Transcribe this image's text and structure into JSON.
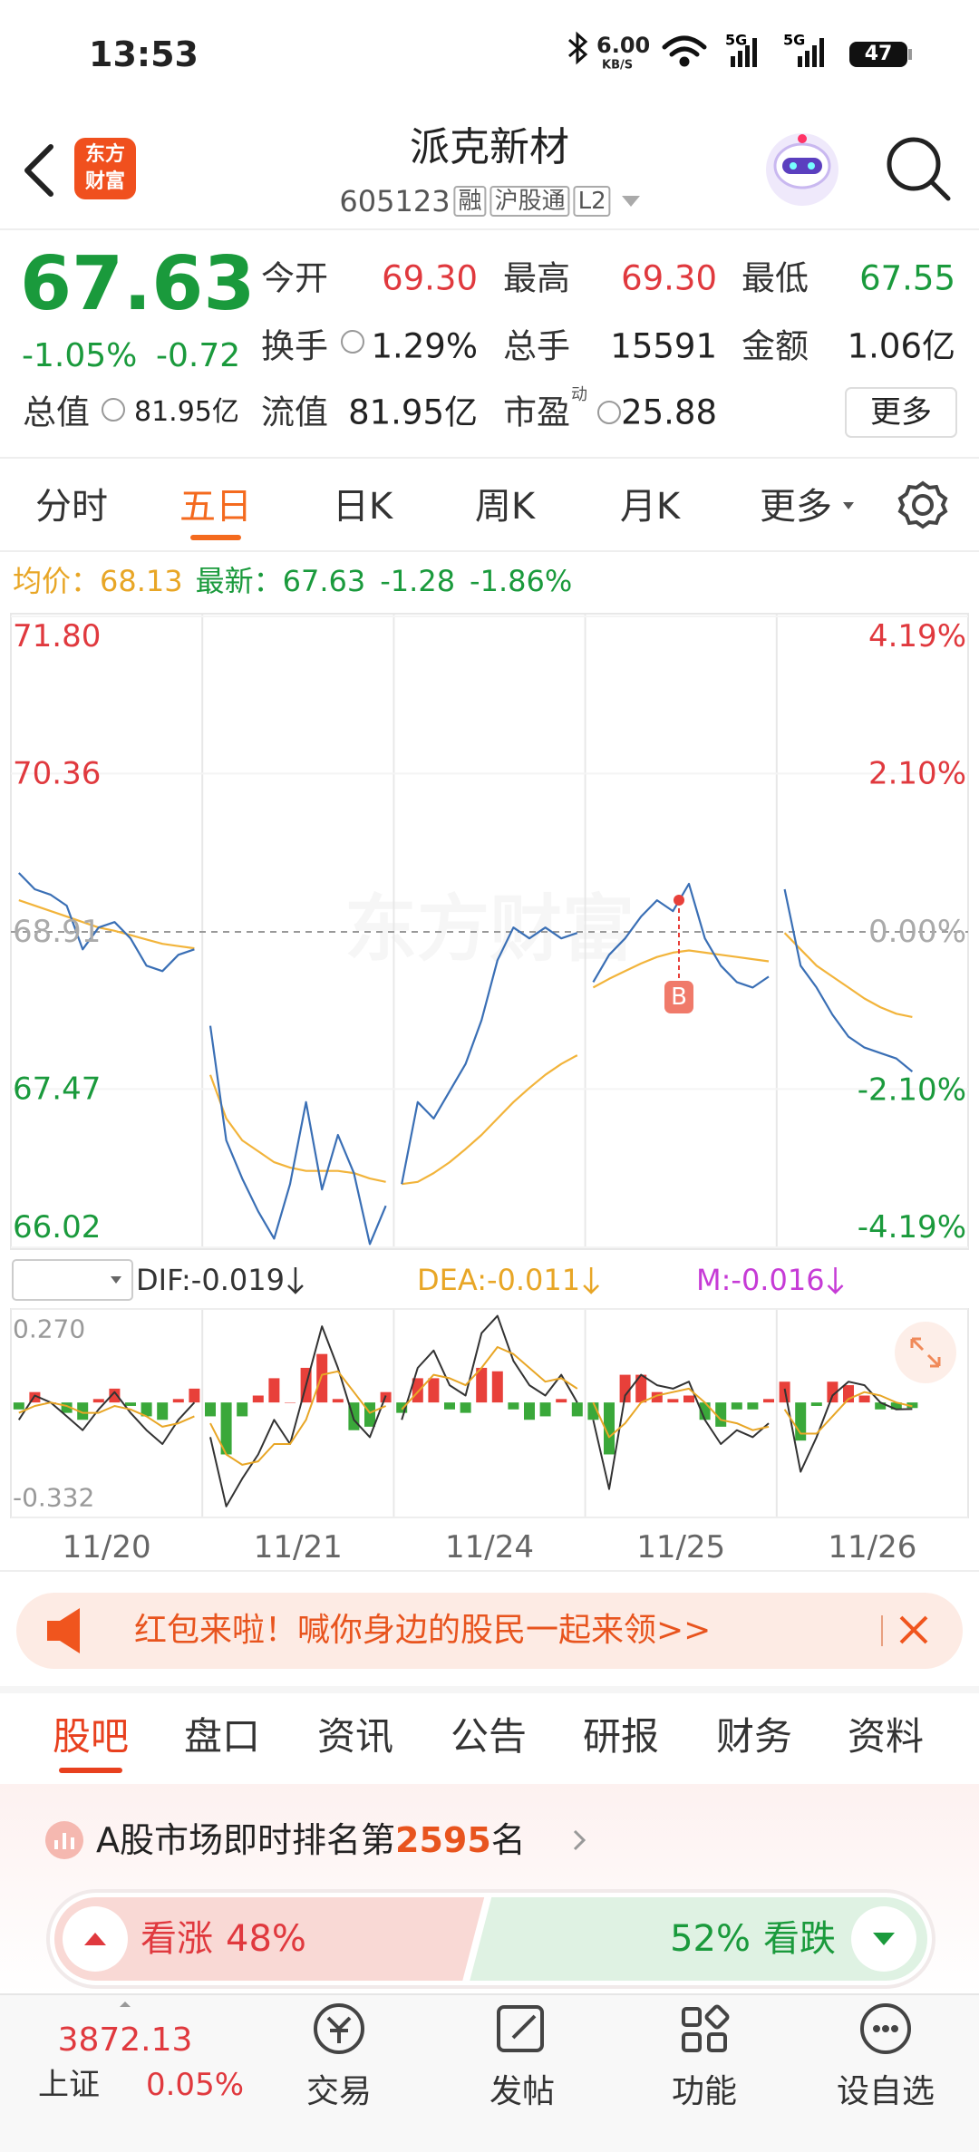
{
  "status_bar": {
    "time": "13:53",
    "net_speed": "6.00",
    "net_unit": "KB/S",
    "battery": "47"
  },
  "header": {
    "logo": [
      "东方",
      "财富"
    ],
    "title": "派克新材",
    "code": "605123",
    "tags": [
      "融",
      "沪股通",
      "L2"
    ]
  },
  "quote": {
    "price": "67.63",
    "change_pct": "-1.05%",
    "change": "-0.72",
    "market_cap_label": "总值",
    "market_cap": "81.95亿",
    "fields": [
      [
        {
          "label": "今开",
          "value": "69.30"
        },
        {
          "label": "最高",
          "value": "69.30"
        },
        {
          "label": "最低",
          "value": "67.55"
        }
      ],
      [
        {
          "label": "换手",
          "value": "1.29%"
        },
        {
          "label": "总手",
          "value": "15591"
        },
        {
          "label": "金额",
          "value": "1.06亿"
        }
      ],
      [
        {
          "label": "流值",
          "value": "81.95亿"
        },
        {
          "label": "市盈",
          "sup": "动",
          "value": "25.88"
        }
      ]
    ],
    "more_button": "更多"
  },
  "period_tabs": {
    "items": [
      "分时",
      "五日",
      "日K",
      "周K",
      "月K",
      "更多"
    ]
  },
  "chart_info": {
    "change": "-1.28",
    "change_pct": "-1.86%"
  },
  "watermark": "东方财富",
  "chart_data": [
    {
      "type": "line",
      "marker_label": "B",
      "ylim": [
        66.02,
        71.8
      ],
      "yticks": [
        {
          "value": 71.8,
          "label": "71.80"
        },
        70.36,
        68.91,
        67.47,
        66.02
      ],
      "y2lim": [
        -4.19,
        4.19
      ],
      "y2ticks": [
        {
          "value": 4.19,
          "label": "4.19%"
        },
        {
          "value": 2.1,
          "label": "2.10%"
        },
        {
          "value": 0,
          "label": "0.00%"
        },
        {
          "value": -2.1,
          "label": "-2.10%"
        },
        {
          "value": -4.19,
          "label": "-4.19%"
        }
      ],
      "series": [
        {
          "name": "最新：",
          "color": "#3a6fb5",
          "values": [
            [
              69.45,
              69.3,
              69.25,
              69.15,
              68.75,
              68.95,
              69.0,
              68.85,
              68.6,
              68.55,
              68.7,
              68.75
            ],
            [
              68.05,
              67.0,
              66.65,
              66.35,
              66.1,
              66.6,
              67.35,
              66.55,
              67.05,
              66.7,
              66.05,
              66.4
            ],
            [
              66.6,
              67.35,
              67.2,
              67.45,
              67.7,
              68.1,
              68.65,
              68.95,
              68.85,
              68.95,
              68.85,
              68.9
            ],
            [
              68.45,
              68.7,
              68.85,
              69.05,
              69.2,
              69.1,
              69.35,
              68.85,
              68.6,
              68.45,
              68.4,
              68.5
            ],
            [
              69.3,
              68.6,
              68.4,
              68.15,
              67.95,
              67.85,
              67.8,
              67.75,
              67.63,
              null,
              null,
              null
            ]
          ]
        },
        {
          "name": "均价：",
          "color": "#f2b43b",
          "values": [
            [
              69.2,
              69.15,
              69.1,
              69.05,
              69.0,
              68.95,
              68.92,
              68.88,
              68.84,
              68.8,
              68.78,
              68.76
            ],
            [
              67.6,
              67.2,
              67.0,
              66.9,
              66.8,
              66.75,
              66.72,
              66.72,
              66.72,
              66.7,
              66.65,
              66.62
            ],
            [
              66.6,
              66.62,
              66.7,
              66.8,
              66.92,
              67.05,
              67.2,
              67.35,
              67.48,
              67.6,
              67.7,
              67.78
            ],
            [
              68.4,
              68.48,
              68.55,
              68.62,
              68.68,
              68.72,
              68.74,
              68.72,
              68.7,
              68.68,
              68.66,
              68.64
            ],
            [
              68.9,
              68.75,
              68.6,
              68.5,
              68.4,
              68.3,
              68.22,
              68.16,
              68.13,
              null,
              null,
              null
            ]
          ]
        }
      ]
    },
    {
      "type": "macd",
      "title": "MACD",
      "categories": [
        "11/20",
        "11/21",
        "11/24",
        "11/25",
        "11/26"
      ],
      "ylim": [
        -0.332,
        0.27
      ],
      "yticks": [
        {
          "value": 0.27,
          "label": "0.270"
        },
        -0.332
      ],
      "series": [
        {
          "name": "DIF:",
          "type": "line",
          "color": "#333333",
          "values": [
            [
              -0.05,
              0.02,
              0.0,
              -0.04,
              -0.08,
              -0.02,
              0.03,
              -0.03,
              -0.08,
              -0.12,
              -0.05,
              0.0
            ],
            [
              -0.1,
              -0.3,
              -0.22,
              -0.15,
              -0.05,
              -0.12,
              0.05,
              0.22,
              0.1,
              -0.05,
              -0.1,
              0.02
            ],
            [
              -0.05,
              0.1,
              0.15,
              0.05,
              0.02,
              0.2,
              0.25,
              0.12,
              0.05,
              0.02,
              0.08,
              0.0
            ],
            [
              -0.05,
              -0.25,
              0.02,
              0.08,
              0.05,
              0.04,
              0.06,
              -0.05,
              -0.12,
              -0.08,
              -0.1,
              -0.06
            ],
            [
              0.04,
              -0.2,
              -0.1,
              0.02,
              0.06,
              0.05,
              0.0,
              -0.02,
              -0.019,
              null,
              null,
              null
            ]
          ]
        },
        {
          "name": "DEA:",
          "type": "line",
          "color": "#e8a626",
          "values": [
            [
              -0.03,
              -0.01,
              0.0,
              -0.01,
              -0.03,
              -0.03,
              -0.01,
              -0.02,
              -0.04,
              -0.07,
              -0.06,
              -0.04
            ],
            [
              -0.06,
              -0.15,
              -0.18,
              -0.17,
              -0.12,
              -0.12,
              -0.05,
              0.08,
              0.09,
              0.03,
              -0.03,
              -0.01
            ],
            [
              -0.02,
              0.03,
              0.08,
              0.07,
              0.05,
              0.1,
              0.16,
              0.14,
              0.1,
              0.06,
              0.07,
              0.04
            ],
            [
              0.0,
              -0.1,
              -0.06,
              0.0,
              0.02,
              0.03,
              0.04,
              0.0,
              -0.05,
              -0.06,
              -0.08,
              -0.07
            ],
            [
              -0.02,
              -0.09,
              -0.09,
              -0.04,
              0.01,
              0.03,
              0.02,
              0.0,
              -0.011,
              null,
              null,
              null
            ]
          ]
        },
        {
          "name": "M:",
          "type": "bar",
          "color": "#c63bd6",
          "up_color": "#e8403a",
          "down_color": "#3aa83a",
          "values": [
            [
              -0.02,
              0.03,
              0.0,
              -0.03,
              -0.05,
              0.01,
              0.04,
              -0.01,
              -0.04,
              -0.05,
              0.01,
              0.04
            ],
            [
              -0.04,
              -0.15,
              -0.04,
              0.02,
              0.07,
              0.0,
              0.1,
              0.14,
              0.01,
              -0.08,
              -0.07,
              0.03
            ],
            [
              -0.03,
              0.07,
              0.07,
              -0.02,
              -0.03,
              0.1,
              0.09,
              -0.02,
              -0.05,
              -0.04,
              0.01,
              -0.04
            ],
            [
              -0.05,
              -0.15,
              0.08,
              0.08,
              0.03,
              0.01,
              0.02,
              -0.05,
              -0.07,
              -0.02,
              -0.02,
              0.01
            ],
            [
              0.06,
              -0.11,
              -0.01,
              0.06,
              0.05,
              0.02,
              -0.02,
              -0.02,
              -0.016,
              null,
              null,
              null
            ]
          ]
        }
      ]
    }
  ],
  "banner": {
    "text": "红包来啦！喊你身边的股民一起来领>>"
  },
  "content_tabs": {
    "items": [
      "股吧",
      "盘口",
      "资讯",
      "公告",
      "研报",
      "财务",
      "资料"
    ]
  },
  "ranking": {
    "prefix": "A股市场即时排名第",
    "rank": "2595",
    "suffix": "名"
  },
  "sentiment": {
    "up_label": "看涨",
    "up_value": 48,
    "up_value_label": "48%",
    "down_value": 52,
    "down_value_label": "52%",
    "down_label": "看跌"
  },
  "bottom_nav": {
    "index_value": "3872.13",
    "index_name": "上证",
    "index_change": "0.05%",
    "items": [
      "交易",
      "发帖",
      "功能",
      "设自选"
    ]
  }
}
